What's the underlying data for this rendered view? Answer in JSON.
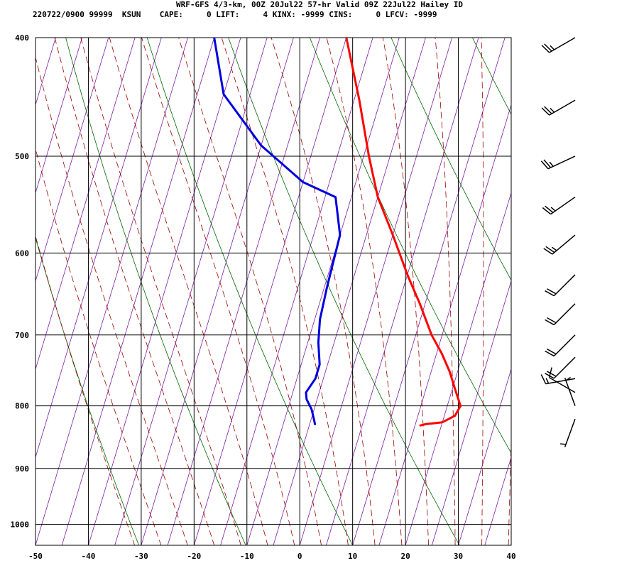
{
  "header": {
    "title": "WRF-GFS 4/3-km, 00Z 20Jul22 57-hr Valid 09Z 22Jul22 Hailey ID",
    "info": "220722/0900 99999  KSUN    CAPE:     0 LIFT:     4 KINX: -9999 CINS:     0 LFCV: -9999"
  },
  "chart_data": {
    "type": "line",
    "chart_kind": "skew-T log-P sounding",
    "xlim": [
      -50,
      40
    ],
    "ylim": [
      1040,
      400
    ],
    "y_scale": "log",
    "grid": true,
    "x_ticks": [
      -50,
      -40,
      -30,
      -20,
      -10,
      0,
      10,
      20,
      30,
      40
    ],
    "y_ticks": [
      400,
      500,
      600,
      700,
      800,
      900,
      1000
    ],
    "background_lines": {
      "isotherm_color": "#7b1fa2",
      "dry_adiabat_color": "#006600",
      "moist_adiabat_color": "#990000"
    },
    "series": [
      {
        "color": "#ff0000",
        "points": [
          {
            "t": -20.0,
            "p": 400
          },
          {
            "t": -14.0,
            "p": 450
          },
          {
            "t": -9.0,
            "p": 500
          },
          {
            "t": -5.0,
            "p": 540
          },
          {
            "t": 0.0,
            "p": 580
          },
          {
            "t": 5.0,
            "p": 625
          },
          {
            "t": 9.0,
            "p": 660
          },
          {
            "t": 13.0,
            "p": 700
          },
          {
            "t": 16.0,
            "p": 725
          },
          {
            "t": 18.5,
            "p": 750
          },
          {
            "t": 20.5,
            "p": 775
          },
          {
            "t": 22.5,
            "p": 800
          },
          {
            "t": 22.0,
            "p": 815
          },
          {
            "t": 20.0,
            "p": 825
          },
          {
            "t": 17.0,
            "p": 828
          },
          {
            "t": 16.0,
            "p": 830
          }
        ]
      },
      {
        "color": "#0000dd",
        "points": [
          {
            "t": -45.0,
            "p": 400
          },
          {
            "t": -40.0,
            "p": 445
          },
          {
            "t": -30.0,
            "p": 490
          },
          {
            "t": -20.0,
            "p": 525
          },
          {
            "t": -13.0,
            "p": 540
          },
          {
            "t": -10.0,
            "p": 580
          },
          {
            "t": -9.5,
            "p": 640
          },
          {
            "t": -9.0,
            "p": 680
          },
          {
            "t": -8.0,
            "p": 710
          },
          {
            "t": -6.5,
            "p": 740
          },
          {
            "t": -6.5,
            "p": 760
          },
          {
            "t": -7.5,
            "p": 780
          },
          {
            "t": -7.0,
            "p": 790
          },
          {
            "t": -5.5,
            "p": 805
          },
          {
            "t": -4.5,
            "p": 820
          },
          {
            "t": -4.0,
            "p": 828
          }
        ]
      }
    ],
    "wind_barbs_kt": [
      {
        "p": 400,
        "dir": 240,
        "speed": 25
      },
      {
        "p": 450,
        "dir": 240,
        "speed": 25
      },
      {
        "p": 500,
        "dir": 245,
        "speed": 25
      },
      {
        "p": 540,
        "dir": 235,
        "speed": 25
      },
      {
        "p": 580,
        "dir": 230,
        "speed": 25
      },
      {
        "p": 625,
        "dir": 225,
        "speed": 20
      },
      {
        "p": 660,
        "dir": 225,
        "speed": 20
      },
      {
        "p": 700,
        "dir": 225,
        "speed": 20
      },
      {
        "p": 730,
        "dir": 225,
        "speed": 20
      },
      {
        "p": 760,
        "dir": 260,
        "speed": 15
      },
      {
        "p": 780,
        "dir": 300,
        "speed": 10
      },
      {
        "p": 800,
        "dir": 340,
        "speed": 5
      },
      {
        "p": 820,
        "dir": 200,
        "speed": 5
      }
    ]
  }
}
